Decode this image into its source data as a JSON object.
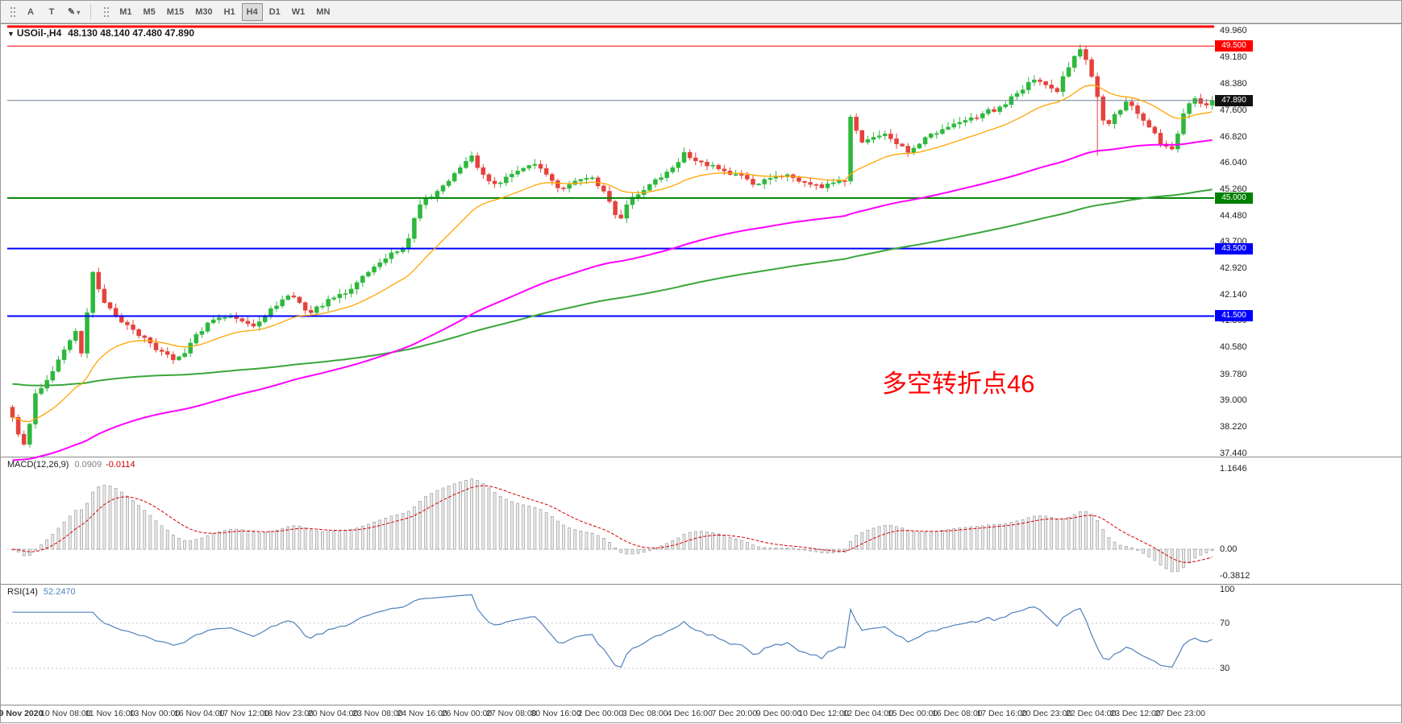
{
  "toolbar": {
    "tools": [
      "A",
      "T"
    ],
    "pencil_glyph": "✎",
    "caret_glyph": "▾",
    "timeframes": [
      "M1",
      "M5",
      "M15",
      "M30",
      "H1",
      "H4",
      "D1",
      "W1",
      "MN"
    ],
    "active_timeframe": "H4"
  },
  "chart": {
    "title": {
      "marker": "▼",
      "symbol": "USOil-,H4",
      "ohlc": "48.130 48.140 47.480 47.890"
    },
    "annotation": {
      "text": "多空转折点46",
      "color": "#ff0000"
    },
    "colors": {
      "up": "#2db83d",
      "down": "#e5423c",
      "bid_line": "#708090",
      "bid_badge": "#111111"
    },
    "price_axis_labels": [
      "49.960",
      "49.180",
      "48.380",
      "47.600",
      "46.820",
      "46.040",
      "45.260",
      "44.480",
      "43.700",
      "42.920",
      "42.140",
      "41.360",
      "40.580",
      "39.780",
      "39.000",
      "38.220",
      "37.440"
    ],
    "levels": [
      {
        "price": 50.08,
        "label": "",
        "color": "#ff0000",
        "width": 3
      },
      {
        "price": 49.5,
        "label": "49.500",
        "color": "#ff0000",
        "width": 1
      },
      {
        "price": 45.0,
        "label": "45.000",
        "color": "#008000",
        "width": 2
      },
      {
        "price": 43.5,
        "label": "43.500",
        "color": "#0000ff",
        "width": 2
      },
      {
        "price": 41.5,
        "label": "41.500",
        "color": "#0000ff",
        "width": 2
      }
    ],
    "bid": {
      "price": 47.89,
      "label": "47.890"
    },
    "candles": {
      "count": 210,
      "anchors": [
        [
          0,
          38.5
        ],
        [
          1,
          38.0
        ],
        [
          2,
          37.7
        ],
        [
          3,
          38.3
        ],
        [
          4,
          39.2
        ],
        [
          6,
          39.6
        ],
        [
          9,
          40.5
        ],
        [
          11,
          41.05
        ],
        [
          12,
          40.4
        ],
        [
          13,
          41.6
        ],
        [
          14,
          42.8
        ],
        [
          15,
          42.3
        ],
        [
          16,
          41.9
        ],
        [
          18,
          41.5
        ],
        [
          21,
          41.1
        ],
        [
          24,
          40.7
        ],
        [
          26,
          40.45
        ],
        [
          28,
          40.2
        ],
        [
          30,
          40.4
        ],
        [
          31,
          40.7
        ],
        [
          34,
          41.3
        ],
        [
          36,
          41.45
        ],
        [
          38,
          41.5
        ],
        [
          40,
          41.35
        ],
        [
          42,
          41.2
        ],
        [
          44,
          41.5
        ],
        [
          46,
          41.8
        ],
        [
          48,
          42.1
        ],
        [
          50,
          41.9
        ],
        [
          52,
          41.6
        ],
        [
          55,
          42.0
        ],
        [
          57,
          42.15
        ],
        [
          59,
          42.3
        ],
        [
          62,
          42.8
        ],
        [
          65,
          43.2
        ],
        [
          68,
          43.5
        ],
        [
          69,
          43.8
        ],
        [
          70,
          44.4
        ],
        [
          71,
          44.8
        ],
        [
          72,
          45.0
        ],
        [
          74,
          45.2
        ],
        [
          76,
          45.5
        ],
        [
          78,
          45.9
        ],
        [
          80,
          46.25
        ],
        [
          81,
          45.9
        ],
        [
          83,
          45.5
        ],
        [
          85,
          45.45
        ],
        [
          88,
          45.8
        ],
        [
          91,
          46.0
        ],
        [
          93,
          45.7
        ],
        [
          95,
          45.3
        ],
        [
          97,
          45.4
        ],
        [
          99,
          45.55
        ],
        [
          101,
          45.6
        ],
        [
          103,
          45.2
        ],
        [
          105,
          44.5
        ],
        [
          106,
          44.4
        ],
        [
          107,
          44.8
        ],
        [
          109,
          45.1
        ],
        [
          111,
          45.4
        ],
        [
          113,
          45.6
        ],
        [
          115,
          45.9
        ],
        [
          117,
          46.35
        ],
        [
          119,
          46.1
        ],
        [
          121,
          45.95
        ],
        [
          124,
          45.8
        ],
        [
          126,
          45.7
        ],
        [
          129,
          45.4
        ],
        [
          131,
          45.55
        ],
        [
          133,
          45.65
        ],
        [
          136,
          45.6
        ],
        [
          139,
          45.4
        ],
        [
          141,
          45.3
        ],
        [
          143,
          45.45
        ],
        [
          145,
          45.5
        ],
        [
          146,
          47.4
        ],
        [
          147,
          47.0
        ],
        [
          148,
          46.65
        ],
        [
          150,
          46.8
        ],
        [
          152,
          46.9
        ],
        [
          154,
          46.6
        ],
        [
          156,
          46.35
        ],
        [
          158,
          46.6
        ],
        [
          160,
          46.9
        ],
        [
          163,
          47.1
        ],
        [
          166,
          47.3
        ],
        [
          169,
          47.5
        ],
        [
          172,
          47.7
        ],
        [
          175,
          48.1
        ],
        [
          178,
          48.5
        ],
        [
          180,
          48.35
        ],
        [
          182,
          48.15
        ],
        [
          183,
          48.6
        ],
        [
          185,
          49.2
        ],
        [
          186,
          49.4
        ],
        [
          187,
          49.1
        ],
        [
          188,
          48.6
        ],
        [
          189,
          48.0
        ],
        [
          190,
          47.3
        ],
        [
          191,
          47.2
        ],
        [
          193,
          47.6
        ],
        [
          194,
          47.85
        ],
        [
          196,
          47.5
        ],
        [
          198,
          47.1
        ],
        [
          200,
          46.6
        ],
        [
          202,
          46.45
        ],
        [
          203,
          46.9
        ],
        [
          204,
          47.5
        ],
        [
          205,
          47.8
        ],
        [
          206,
          47.95
        ],
        [
          207,
          47.8
        ],
        [
          208,
          47.75
        ],
        [
          209,
          47.89
        ]
      ],
      "wick_lows": [
        [
          189,
          46.25
        ]
      ],
      "wick_highs": [
        [
          186,
          49.47
        ]
      ]
    },
    "mas": [
      {
        "name": "ma-slow-green",
        "color": "#3aa63a",
        "period": 200,
        "start": 39.5,
        "width": 2
      },
      {
        "name": "ma-mid-magenta",
        "color": "#ff00ff",
        "period": 100,
        "start": 37.2,
        "width": 2
      },
      {
        "name": "ma-fast-orange",
        "color": "#ffa500",
        "period": 20,
        "start": 38.5,
        "width": 1.3
      }
    ]
  },
  "macd": {
    "name": "MACD(12,26,9)",
    "main_value": "0.0909",
    "signal_value": "-0.0114",
    "axis_labels": [
      "1.1646",
      "0.00",
      "-0.3812"
    ]
  },
  "rsi": {
    "name": "RSI(14)",
    "value": "52.2470",
    "axis_labels": [
      "100",
      "70",
      "30"
    ],
    "levels": [
      70,
      30
    ]
  },
  "time_axis": {
    "labels": [
      "9 Nov 2020",
      "10 Nov 08:00",
      "11 Nov 16:00",
      "13 Nov 00:00",
      "16 Nov 04:00",
      "17 Nov 12:00",
      "18 Nov 23:00",
      "20 Nov 04:00",
      "23 Nov 08:00",
      "24 Nov 16:00",
      "26 Nov 00:00",
      "27 Nov 08:00",
      "30 Nov 16:00",
      "2 Dec 00:00",
      "3 Dec 08:00",
      "4 Dec 16:00",
      "7 Dec 20:00",
      "9 Dec 00:00",
      "10 Dec 12:00",
      "12 Dec 04:00",
      "15 Dec 00:00",
      "16 Dec 08:00",
      "17 Dec 16:00",
      "20 Dec 23:00",
      "22 Dec 04:00",
      "23 Dec 12:00",
      "27 Dec 23:00"
    ]
  },
  "chart_data": {
    "type": "candlestick",
    "symbol": "USOil",
    "timeframe": "H4",
    "current_ohlc": {
      "open": 48.13,
      "high": 48.14,
      "low": 47.48,
      "close": 47.89
    },
    "visible_price_range": [
      37.44,
      49.96
    ],
    "horizontal_levels": [
      49.5,
      45.0,
      43.5,
      41.5
    ],
    "bid": 47.89,
    "x_range": [
      "9 Nov 2020",
      "27 Dec 23:00"
    ],
    "indicators": [
      {
        "name": "MACD",
        "params": [
          12,
          26,
          9
        ],
        "current_values": [
          0.0909,
          -0.0114
        ],
        "visible_range": [
          -0.3812,
          1.1646
        ]
      },
      {
        "name": "RSI",
        "params": [
          14
        ],
        "current_value": 52.247,
        "levels": [
          30,
          70
        ]
      },
      {
        "name": "Moving Averages",
        "note": "fast orange, medium magenta, slow green"
      }
    ],
    "annotation": "多空转折点46"
  }
}
